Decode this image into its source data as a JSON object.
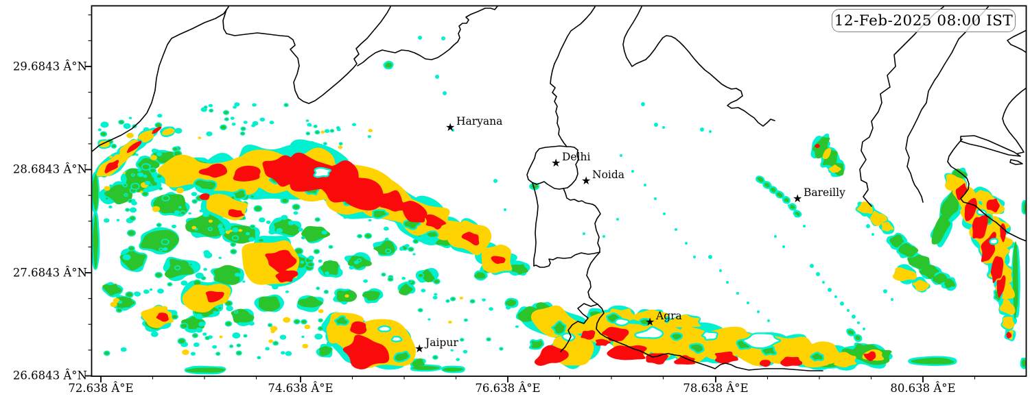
{
  "title_box": {
    "timestamp": "12-Feb-2025 08:00 IST"
  },
  "axes": {
    "x_tick_labels": [
      "72.638 Â°E",
      "74.638 Â°E",
      "76.638 Â°E",
      "78.638 Â°E",
      "80.638 Â°E"
    ],
    "y_tick_labels": [
      "29.6843 Â°N",
      "28.6843 Â°N",
      "27.6843 Â°N",
      "26.6843 Â°N"
    ]
  },
  "map": {
    "marker_glyph": "★",
    "cities": [
      {
        "name": "Haryana"
      },
      {
        "name": "Delhi"
      },
      {
        "name": "Noida"
      },
      {
        "name": "Bareilly"
      },
      {
        "name": "Agra"
      },
      {
        "name": "Jaipur"
      }
    ]
  },
  "colors": {
    "intensity_level_1": "#00F0D0",
    "intensity_level_2": "#2CC42C",
    "intensity_level_3": "#FFD300",
    "intensity_level_4": "#FA0A0A",
    "boundary_line": "#000000",
    "frame": "#000000",
    "timestamp_box_border": "#7F7F7F",
    "background": "#FFFFFF"
  }
}
